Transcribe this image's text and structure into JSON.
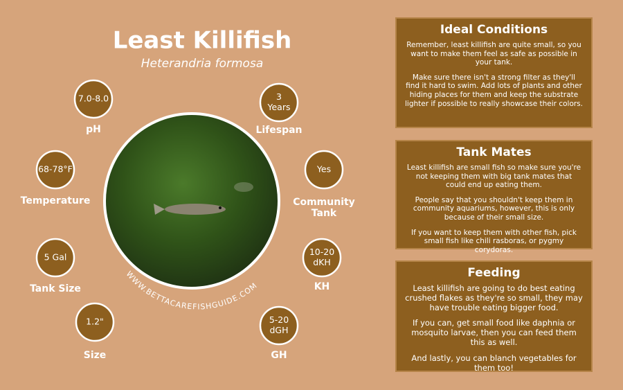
{
  "header": {
    "title": "Least Killifish",
    "subtitle": "Heterandria formosa"
  },
  "stats": [
    {
      "value": [
        "7.0-8.0"
      ],
      "label": [
        "pH"
      ]
    },
    {
      "value": [
        "3",
        "Years"
      ],
      "label": [
        "Lifespan"
      ]
    },
    {
      "value": [
        "68-78°F"
      ],
      "label": [
        "Temperature"
      ]
    },
    {
      "value": [
        "Yes"
      ],
      "label": [
        "Community",
        "Tank"
      ]
    },
    {
      "value": [
        "5 Gal"
      ],
      "label": [
        "Tank Size"
      ]
    },
    {
      "value": [
        "10-20",
        "dKH"
      ],
      "label": [
        "KH"
      ]
    },
    {
      "value": [
        "1.2\""
      ],
      "label": [
        "Size"
      ]
    },
    {
      "value": [
        "5-20",
        "dGH"
      ],
      "label": [
        "GH"
      ]
    }
  ],
  "watermark": "WWW.BETTACAREFISHGUIDE.COM",
  "panels": [
    {
      "title": "Ideal Conditions",
      "paragraphs": [
        "Remember, least killifish are quite small, so you want to make them feel as safe as possible in your tank.",
        "Make sure there isn't a strong filter as they'll find it hard to swim. Add lots of plants and other hiding places for them and keep the substrate lighter if possible to really showcase their colors."
      ]
    },
    {
      "title": "Tank Mates",
      "paragraphs": [
        "Least killifish are small fish so make sure you're not keeping them with big tank mates that could end up eating them.",
        "People say that you shouldn't keep them in community aquariums, however, this is only because of their small size.",
        "If you want to keep them with other fish, pick small fish like chili rasboras, or pygmy corydoras."
      ]
    },
    {
      "title": "Feeding",
      "paragraphs": [
        "Least killifish are going to do best eating crushed flakes as they're so small, they may have trouble eating bigger food.",
        "If you can, get small food like daphnia or mosquito larvae, then you can feed them this as well.",
        "And lastly, you can blanch vegetables for them too!"
      ]
    }
  ]
}
